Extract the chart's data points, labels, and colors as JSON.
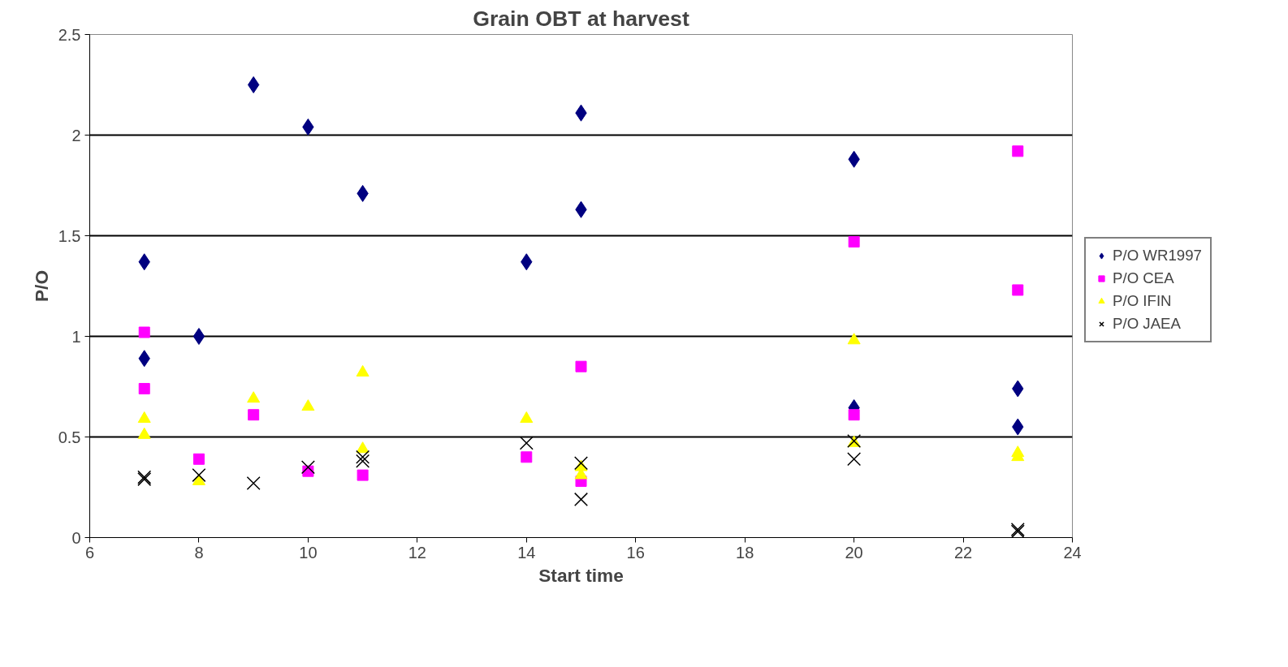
{
  "chart_data": {
    "type": "scatter",
    "title": "Grain OBT at harvest",
    "xlabel": "Start time",
    "ylabel": "P/O",
    "xlim": [
      6,
      24
    ],
    "xticks": [
      6,
      8,
      10,
      12,
      14,
      16,
      18,
      20,
      22,
      24
    ],
    "ylim": [
      0,
      2.5
    ],
    "yticks": [
      0,
      0.5,
      1,
      1.5,
      2,
      2.5
    ],
    "grid": "y",
    "legend": "right",
    "series": [
      {
        "name": "P/O WR1997",
        "color": "#000080",
        "marker": "diamond",
        "x": [
          7,
          7,
          8,
          9,
          10,
          11,
          14,
          15,
          15,
          20,
          20,
          23,
          23
        ],
        "values": [
          1.37,
          0.89,
          1.0,
          2.25,
          2.04,
          1.71,
          1.37,
          2.11,
          1.63,
          1.88,
          0.645,
          0.74,
          0.55
        ]
      },
      {
        "name": "P/O CEA",
        "color": "#ff00ff",
        "marker": "square",
        "x": [
          7,
          7,
          8,
          9,
          10,
          11,
          14,
          15,
          15,
          20,
          20,
          23,
          23
        ],
        "values": [
          1.02,
          0.74,
          0.39,
          0.61,
          0.33,
          0.31,
          0.4,
          0.85,
          0.28,
          1.47,
          0.61,
          1.92,
          1.23
        ]
      },
      {
        "name": "P/O IFIN",
        "color": "#ffff00",
        "marker": "triangle",
        "x": [
          7,
          7,
          8,
          9,
          10,
          11,
          11,
          14,
          15,
          15,
          20,
          20,
          23,
          23
        ],
        "values": [
          0.59,
          0.51,
          0.28,
          0.69,
          0.65,
          0.82,
          0.44,
          0.59,
          0.31,
          0.35,
          0.98,
          0.47,
          0.42,
          0.4
        ]
      },
      {
        "name": "P/O JAEA",
        "color": "#000000",
        "marker": "cross",
        "x": [
          7,
          7,
          8,
          9,
          10,
          11,
          11,
          14,
          15,
          15,
          20,
          20,
          23,
          23
        ],
        "values": [
          0.3,
          0.29,
          0.31,
          0.27,
          0.35,
          0.4,
          0.38,
          0.47,
          0.37,
          0.19,
          0.48,
          0.39,
          0.04,
          0.03
        ]
      }
    ]
  }
}
